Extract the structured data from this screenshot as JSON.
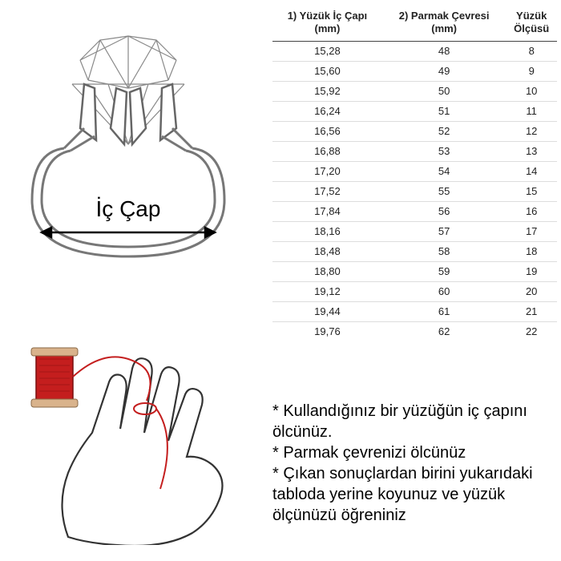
{
  "ring": {
    "label": "İç Çap",
    "label_fontsize": 28,
    "stroke_color": "#777777",
    "arrow_color": "#000000"
  },
  "table": {
    "columns": [
      "1) Yüzük İç Çapı\n(mm)",
      "2) Parmak Çevresi\n(mm)",
      "Yüzük\nÖlçüsü"
    ],
    "rows": [
      [
        "15,28",
        "48",
        "8"
      ],
      [
        "15,60",
        "49",
        "9"
      ],
      [
        "15,92",
        "50",
        "10"
      ],
      [
        "16,24",
        "51",
        "11"
      ],
      [
        "16,56",
        "52",
        "12"
      ],
      [
        "16,88",
        "53",
        "13"
      ],
      [
        "17,20",
        "54",
        "14"
      ],
      [
        "17,52",
        "55",
        "15"
      ],
      [
        "17,84",
        "56",
        "16"
      ],
      [
        "18,16",
        "57",
        "17"
      ],
      [
        "18,48",
        "58",
        "18"
      ],
      [
        "18,80",
        "59",
        "19"
      ],
      [
        "19,12",
        "60",
        "20"
      ],
      [
        "19,44",
        "61",
        "21"
      ],
      [
        "19,76",
        "62",
        "22"
      ]
    ],
    "header_fontsize": 13,
    "cell_fontsize": 13,
    "border_color": "#dddddd",
    "header_border_color": "#444444",
    "text_color": "#222222"
  },
  "hand": {
    "outline_color": "#333333",
    "spool_color": "#c41e1e",
    "thread_color": "#c41e1e"
  },
  "instructions": {
    "lines": [
      "* Kullandığınız bir yüzüğün iç çapını ölcünüz.",
      "* Parmak çevrenizi ölcünüz",
      "* Çıkan sonuçlardan birini yukarıdaki tabloda yerine koyunuz ve yüzük ölçünüzü öğreniniz"
    ],
    "fontsize": 20,
    "color": "#000000"
  },
  "background_color": "#ffffff"
}
